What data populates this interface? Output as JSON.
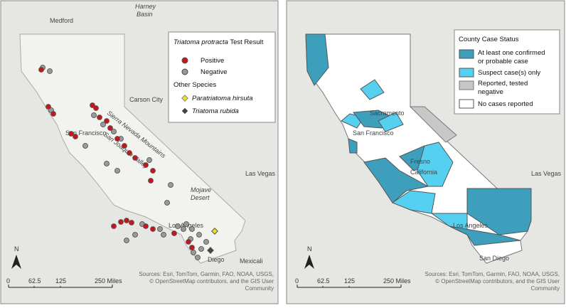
{
  "left_map": {
    "places": [
      "Medford",
      "Harney",
      "Basin",
      "Carson City",
      "San Francisco",
      "Sierra Nevada Mountains",
      "San Joaquin Valley",
      "Las Vegas",
      "Mojave",
      "Desert",
      "Los Angeles",
      "Diego",
      "Mexicali"
    ],
    "legend": {
      "title_species": "Triatoma protracta",
      "title_rest": "Test Result",
      "items": [
        "Positive",
        "Negative"
      ],
      "other_title": "Other Species",
      "other_items": [
        "Paratriatoma hirsuta",
        "Triatoma rubida"
      ]
    },
    "north": "N",
    "scale": [
      "0",
      "62.5",
      "125",
      "250 Miles"
    ],
    "sources": [
      "Sources: Esri, TomTom, Garmin, FAO, NOAA, USGS,",
      "© OpenStreetMap contributors, and the GIS User",
      "Community"
    ]
  },
  "right_map": {
    "places": [
      "Sacramento",
      "San Francisco",
      "Fresno",
      "California",
      "Las Vegas",
      "Los Angeles",
      "San Diego"
    ],
    "legend": {
      "title": "County Case Status",
      "items": [
        [
          "At least one confirmed",
          "or probable case"
        ],
        [
          "Suspect case(s) only"
        ],
        [
          "Reported, tested",
          "negative"
        ],
        [
          "No cases reported"
        ]
      ]
    },
    "north": "N",
    "scale": [
      "0",
      "62.5",
      "125",
      "250 Miles"
    ],
    "sources": [
      "Sources: Esri, TomTom, Garmin, FAO, NOAA, USGS,",
      "© OpenStreetMap contributors, and the GIS User",
      "Community"
    ]
  }
}
